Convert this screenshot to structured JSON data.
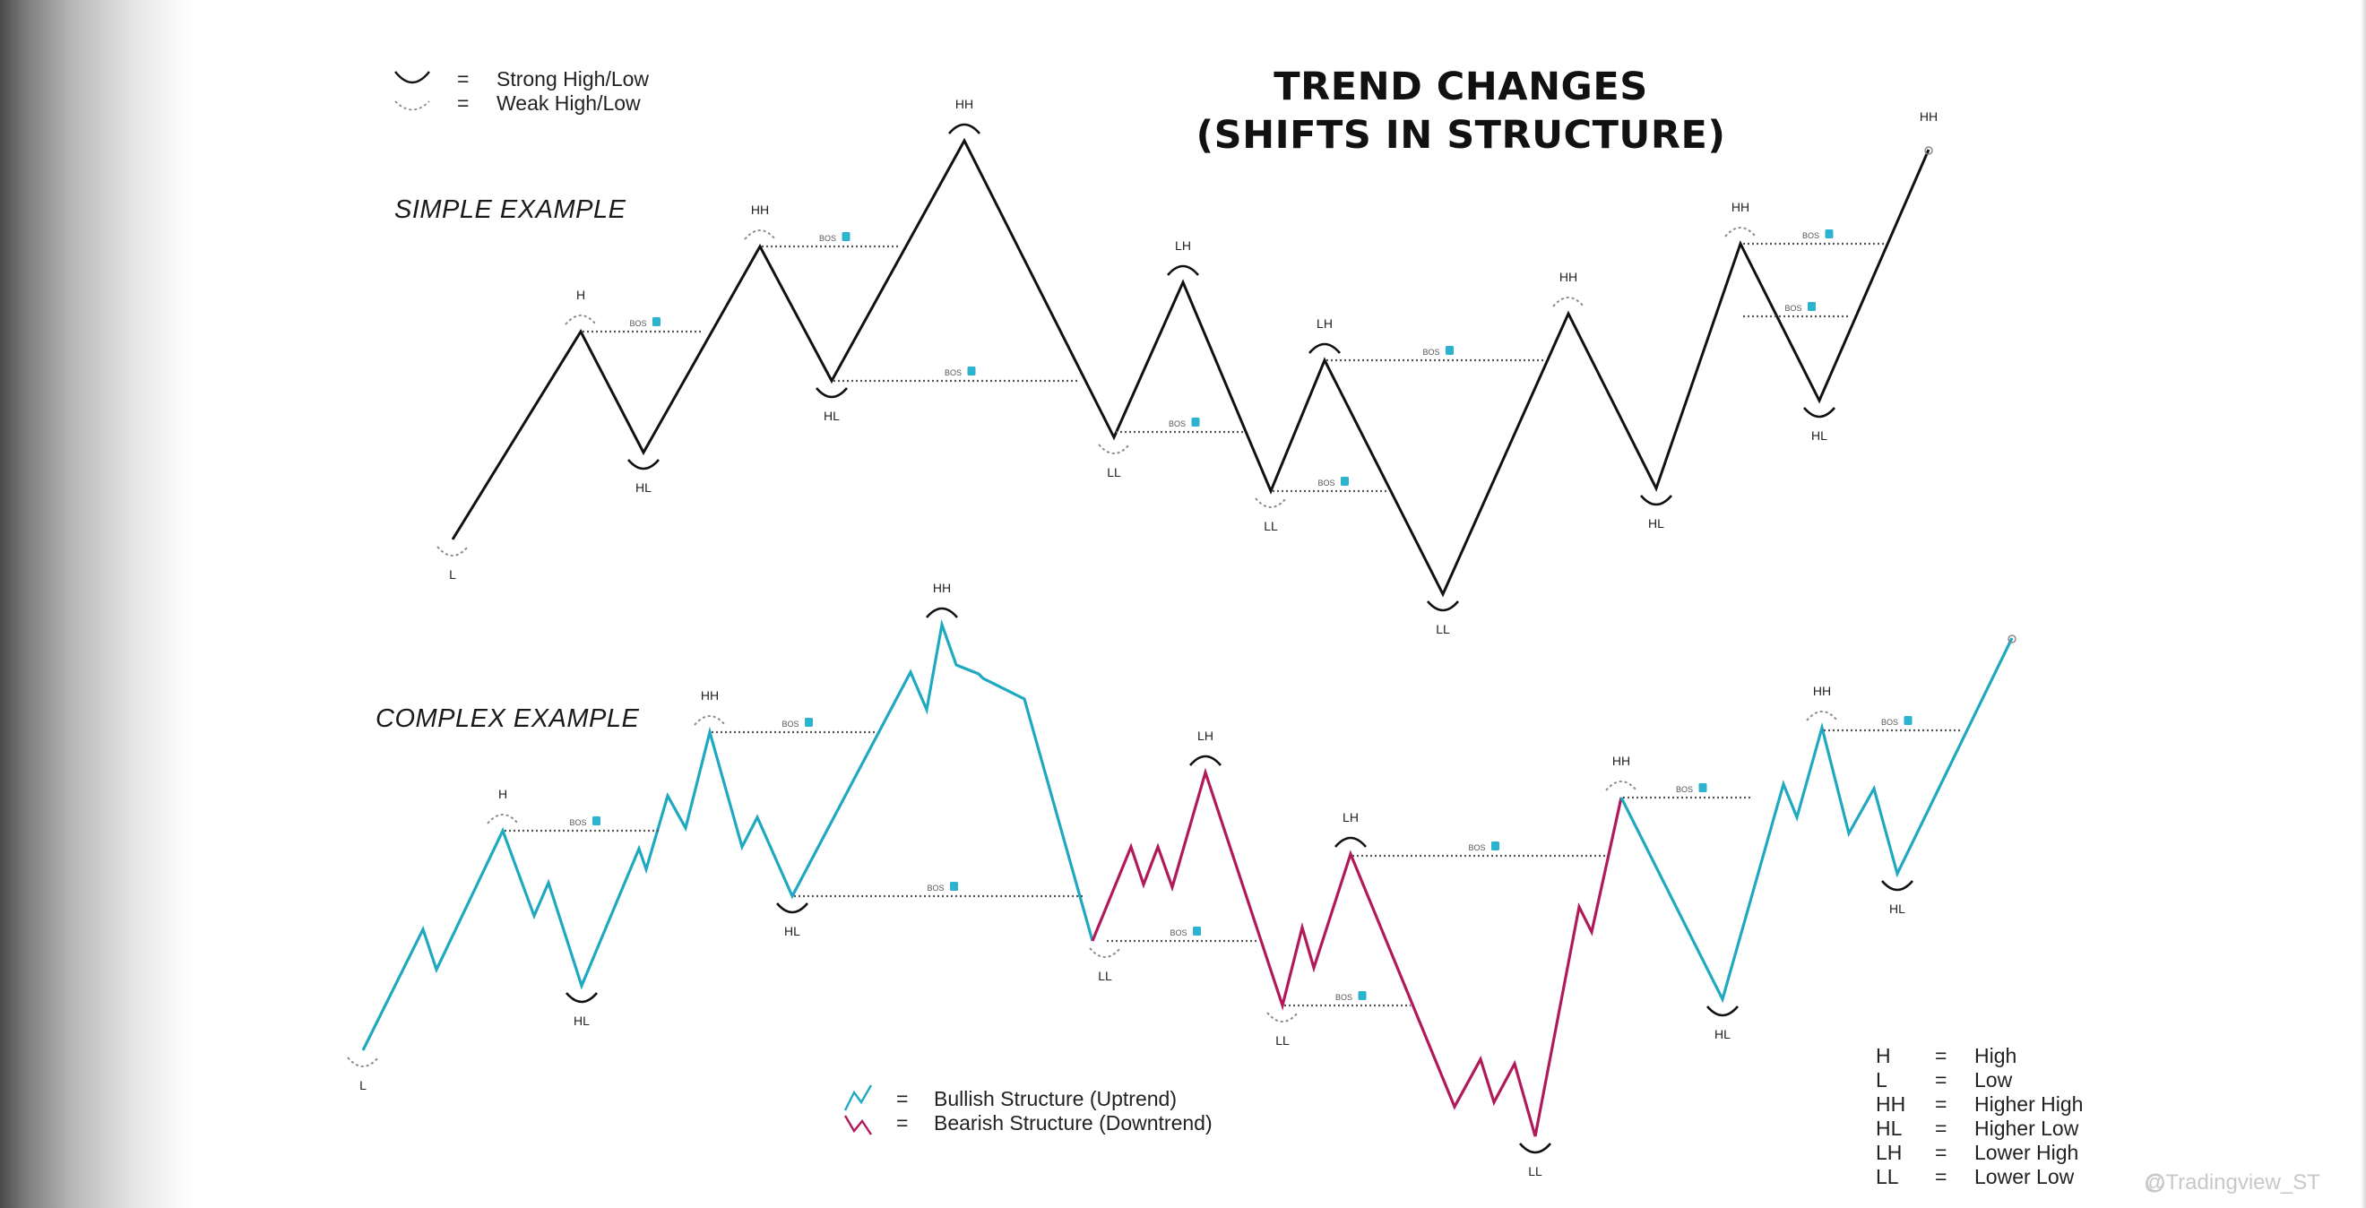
{
  "title": {
    "line1": "TREND CHANGES",
    "line2": "(SHIFTS IN STRUCTURE)"
  },
  "sections": {
    "simple": "SIMPLE EXAMPLE",
    "complex": "COMPLEX EXAMPLE"
  },
  "swing_legend": [
    {
      "symbol": "strong-arc-icon",
      "eq": "=",
      "label": "Strong High/Low"
    },
    {
      "symbol": "weak-arc-icon",
      "eq": "=",
      "label": "Weak High/Low"
    }
  ],
  "structure_legend": [
    {
      "symbol": "bullish-zigzag-icon",
      "eq": "=",
      "label": "Bullish Structure (Uptrend)"
    },
    {
      "symbol": "bearish-zigzag-icon",
      "eq": "=",
      "label": "Bearish Structure (Downtrend)"
    }
  ],
  "abbreviations": [
    {
      "abbr": "H",
      "eq": "=",
      "meaning": "High"
    },
    {
      "abbr": "L",
      "eq": "=",
      "meaning": "Low"
    },
    {
      "abbr": "HH",
      "eq": "=",
      "meaning": "Higher High"
    },
    {
      "abbr": "HL",
      "eq": "=",
      "meaning": "Higher Low"
    },
    {
      "abbr": "LH",
      "eq": "=",
      "meaning": "Lower High"
    },
    {
      "abbr": "LL",
      "eq": "=",
      "meaning": "Lower Low"
    }
  ],
  "bos_label": "BOS",
  "swing_labels": {
    "simple": [
      "L",
      "H",
      "HL",
      "HH",
      "HL",
      "HH",
      "LL",
      "LH",
      "LL",
      "LH",
      "LL",
      "HH",
      "HL",
      "HH",
      "HL",
      "HH"
    ],
    "complex": [
      "L",
      "H",
      "HL",
      "HH",
      "HL",
      "HH",
      "LL",
      "LH",
      "LL",
      "LH",
      "LL",
      "HH",
      "HL",
      "HH",
      "HL"
    ]
  },
  "colors": {
    "simple_line": "#111111",
    "bullish": "#1fa9c0",
    "bearish": "#b0195a",
    "bos_badge": "#2bb3cf",
    "dotted": "#555555",
    "strong_arc": "#111111",
    "weak_arc": "#8a8a8a"
  },
  "watermark": "@Tradingview_ST"
}
